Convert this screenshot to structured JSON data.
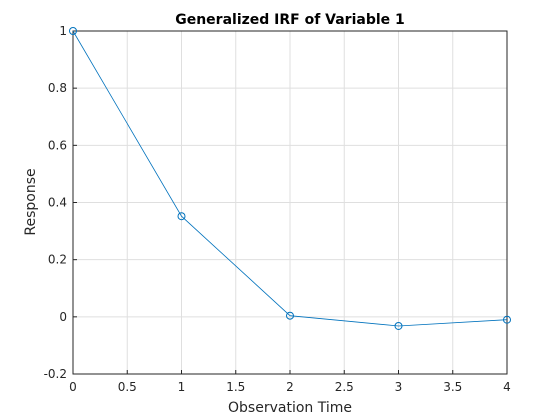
{
  "chart_data": {
    "type": "line",
    "title": "Generalized IRF of Variable 1",
    "xlabel": "Observation Time",
    "ylabel": "Response",
    "x": [
      0,
      1,
      2,
      3,
      4
    ],
    "series": [
      {
        "values": [
          1.0,
          0.352,
          0.004,
          -0.032,
          -0.01
        ]
      }
    ],
    "xlim": [
      0,
      4
    ],
    "ylim": [
      -0.2,
      1
    ],
    "xticks": [
      0,
      0.5,
      1,
      1.5,
      2,
      2.5,
      3,
      3.5,
      4
    ],
    "yticks": [
      -0.2,
      0,
      0.2,
      0.4,
      0.6,
      0.8,
      1
    ],
    "xtick_labels": [
      "0",
      "0.5",
      "1",
      "1.5",
      "2",
      "2.5",
      "3",
      "3.5",
      "4"
    ],
    "ytick_labels": [
      "-0.2",
      "0",
      "0.2",
      "0.4",
      "0.6",
      "0.8",
      "1"
    ],
    "grid": true,
    "marker": "circle",
    "line_color": "#0072BD"
  }
}
